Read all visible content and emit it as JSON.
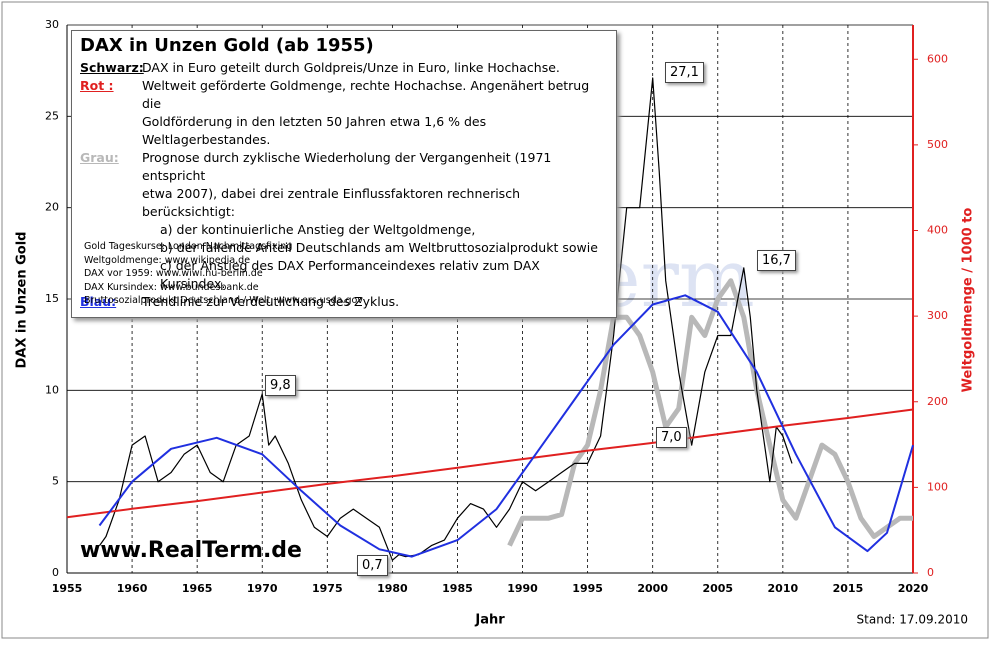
{
  "chart_data": {
    "type": "line",
    "title": "DAX in Unzen Gold   (ab 1955)",
    "watermark": "RealTerm",
    "site": "www.RealTerm.de",
    "footnote": "Stand: 17.09.2010",
    "xlabel": "Jahr",
    "ylabel": "DAX in Unzen Gold",
    "y2label": "Weltgoldmenge / 1000 to",
    "xlim": [
      1955,
      2020
    ],
    "xticks": [
      1955,
      1960,
      1965,
      1970,
      1975,
      1980,
      1985,
      1990,
      1995,
      2000,
      2005,
      2010,
      2015,
      2020
    ],
    "ylim": [
      0,
      30
    ],
    "yticks": [
      0,
      5,
      10,
      15,
      20,
      25,
      30
    ],
    "y2lim": [
      0,
      640
    ],
    "y2ticks": [
      0,
      100,
      200,
      300,
      400,
      500,
      600
    ],
    "y2color": "#e02020",
    "grid": true,
    "info": [
      {
        "label": "Schwarz:",
        "lines": [
          "DAX in Euro geteilt durch Goldpreis/Unze in Euro, linke Hochachse."
        ]
      },
      {
        "label": "Rot :",
        "lines": [
          "Weltweit geförderte Goldmenge, rechte Hochachse. Angenähert betrug die",
          "Goldförderung in den letzten 50 Jahren etwa 1,6 %  des Weltlagerbestandes."
        ]
      },
      {
        "label": "Grau:",
        "lines": [
          "Prognose durch zyklische Wiederholung der Vergangenheit (1971 entspricht",
          "etwa 2007),  dabei drei zentrale Einflussfaktoren rechnerisch berücksichtigt:",
          "a) der kontinuierliche Anstieg der Weltgoldmenge,",
          "b) der fallende Anteil Deutschlands am Weltbruttosozialprodukt sowie",
          "c) der Anstieg des DAX Performanceindexes relativ zum DAX Kursindex."
        ]
      },
      {
        "label": "Blau:",
        "lines": [
          "Trendlinie zur Verdeutlichung des Zyklus."
        ]
      }
    ],
    "sources": [
      "Gold Tageskurse: London Nachmittagsfixing",
      "Weltgoldmenge: www.wikipedia.de",
      "DAX vor 1959: www.wiwi.hu-berlin.de",
      "DAX Kursindex: www.bundesbank.de",
      "Bruttosozialprodukt Deutschland / Welt: www.ers.usda.gov"
    ],
    "annotations": [
      "27,1",
      "16,7",
      "9,8",
      "0,7",
      "7,0"
    ],
    "series": [
      {
        "color": "#000000",
        "width": 1.2,
        "x": [
          1957.5,
          1958,
          1959,
          1960,
          1961,
          1962,
          1963,
          1964,
          1965,
          1966,
          1967,
          1968,
          1969,
          1970,
          1970.5,
          1971,
          1972,
          1973,
          1974,
          1975,
          1976,
          1977,
          1978,
          1979,
          1980,
          1980.5,
          1981,
          1982,
          1983,
          1984,
          1985,
          1986,
          1987,
          1988,
          1989,
          1990,
          1991,
          1992,
          1993,
          1994,
          1995,
          1996,
          1997,
          1998,
          1999,
          2000,
          2000.5,
          2001,
          2002,
          2003,
          2004,
          2005,
          2006,
          2007,
          2007.5,
          2008,
          2009,
          2009.5,
          2010,
          2010.7
        ],
        "values": [
          1.5,
          2,
          4,
          7,
          7.5,
          5,
          5.5,
          6.5,
          7,
          5.5,
          5,
          7,
          7.5,
          9.8,
          7,
          7.5,
          6,
          4,
          2.5,
          2,
          3,
          3.5,
          3,
          2.5,
          0.7,
          1,
          0.9,
          1,
          1.5,
          1.8,
          3,
          3.8,
          3.5,
          2.5,
          3.5,
          5,
          4.5,
          5,
          5.5,
          6,
          6,
          7.5,
          13,
          20,
          20,
          27.1,
          22,
          16,
          11,
          7.0,
          11,
          13,
          13,
          16.7,
          14,
          10,
          5,
          8,
          7.5,
          6
        ]
      },
      {
        "color": "#e02020",
        "width": 2,
        "axis": "y2",
        "x": [
          1955,
          1960,
          1965,
          1970,
          1975,
          1980,
          1985,
          1990,
          1995,
          2000,
          2005,
          2010,
          2015,
          2020
        ],
        "values": [
          65,
          75,
          84,
          94,
          104,
          113,
          123,
          133,
          143,
          152,
          162,
          172,
          181,
          191
        ]
      },
      {
        "color": "#b8b8b8",
        "width": 5,
        "x": [
          1989,
          1990,
          1991,
          1992,
          1993,
          1994,
          1995,
          1996,
          1997,
          1998,
          1999,
          2000,
          2001,
          2002,
          2003,
          2004,
          2005,
          2006,
          2007,
          2008,
          2009,
          2010,
          2011,
          2012,
          2013,
          2014,
          2015,
          2016,
          2017,
          2018,
          2019,
          2020
        ],
        "values": [
          1.5,
          3,
          3,
          3,
          3.2,
          6,
          7,
          10,
          14,
          14,
          13,
          11,
          8,
          9,
          14,
          13,
          15,
          16,
          14,
          10,
          7,
          4,
          3,
          5,
          7,
          6.5,
          5,
          3,
          2,
          2.5,
          3,
          3
        ]
      },
      {
        "color": "#2030e0",
        "width": 2,
        "x": [
          1957.5,
          1960,
          1963,
          1966.5,
          1970,
          1973,
          1976,
          1979,
          1981.5,
          1985,
          1988,
          1991,
          1994,
          1997,
          2000,
          2002.5,
          2005,
          2008,
          2011,
          2014,
          2016.5,
          2018,
          2020
        ],
        "values": [
          2.6,
          5,
          6.8,
          7.4,
          6.5,
          4.5,
          2.6,
          1.3,
          0.9,
          1.8,
          3.5,
          6.5,
          9.5,
          12.5,
          14.7,
          15.2,
          14.3,
          11,
          6.5,
          2.5,
          1.2,
          2.2,
          7
        ]
      }
    ]
  }
}
